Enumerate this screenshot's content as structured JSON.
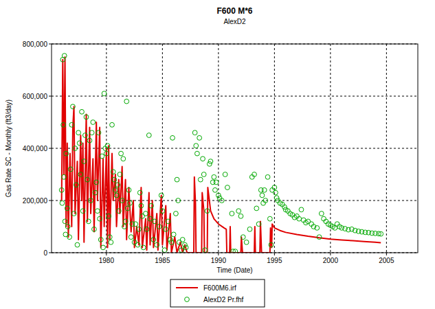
{
  "chart_data": {
    "type": "line",
    "title": "F600 M*6",
    "subtitle": "AlexD2",
    "x_label": "Time (Date)",
    "y_label": "Gas Rate SC - Monthly (ft3/day)",
    "xlim": [
      1975.1,
      2007.8
    ],
    "xticks": [
      1980,
      1985,
      1990,
      1995,
      2000,
      2005
    ],
    "ylim": [
      0,
      800000
    ],
    "yticks": [
      0,
      {
        "value": 200000,
        "label": "200,000"
      },
      {
        "value": 400000,
        "label": "400,000"
      },
      {
        "value": 600000,
        "label": "600,000"
      },
      {
        "value": 800000,
        "label": "800,000"
      }
    ],
    "grid": true,
    "legend": "bottom",
    "series": [
      {
        "name": "F600M6.irf",
        "type": "line",
        "color": "#e00000",
        "line_style": "solid",
        "x": [
          1976.0,
          1976.1,
          1976.2,
          1976.3,
          1976.4,
          1976.5,
          1976.6,
          1976.75,
          1976.9,
          1977.0,
          1977.1,
          1977.2,
          1977.4,
          1977.5,
          1977.7,
          1977.8,
          1977.9,
          1978.0,
          1978.2,
          1978.3,
          1978.5,
          1978.6,
          1978.8,
          1978.9,
          1979.1,
          1979.2,
          1979.4,
          1979.5,
          1979.7,
          1979.8,
          1980.0,
          1980.1,
          1980.2,
          1980.3,
          1980.5,
          1980.6,
          1980.8,
          1980.9,
          1981.1,
          1981.2,
          1981.4,
          1981.5,
          1981.7,
          1981.8,
          1982.0,
          1982.2,
          1982.4,
          1982.5,
          1982.7,
          1982.9,
          1983.1,
          1983.2,
          1983.5,
          1983.6,
          1983.8,
          1983.9,
          1984.1,
          1984.2,
          1984.5,
          1984.6,
          1984.9,
          1985.0,
          1985.3,
          1985.4,
          1985.7,
          1985.8,
          1986.1,
          1986.3,
          1986.6,
          1986.8,
          1987.0,
          1987.2,
          1987.8,
          1987.85,
          1987.95,
          1988.0,
          1988.5,
          1988.55,
          1988.7,
          1988.75,
          1989.0,
          1989.05,
          1989.3,
          1989.6,
          1990.0,
          1990.5,
          1990.7,
          1990.75,
          1991.0,
          1991.05,
          1991.1,
          1992.0,
          1992.05,
          1992.15,
          1993.2,
          1993.25,
          1993.3,
          1993.7,
          1993.75,
          1993.85,
          1994.6,
          1994.65,
          1994.75,
          1994.8,
          1995.0,
          1995.5,
          1996,
          1997,
          1998,
          1999,
          2000,
          2001,
          2002,
          2003,
          2004,
          2004.5
        ],
        "values": [
          200000,
          740000,
          300000,
          750000,
          100000,
          420000,
          60000,
          380000,
          100000,
          480000,
          560000,
          150000,
          350000,
          50000,
          450000,
          200000,
          420000,
          40000,
          530000,
          120000,
          480000,
          150000,
          360000,
          80000,
          500000,
          200000,
          480000,
          20000,
          360000,
          100000,
          400000,
          20000,
          410000,
          50000,
          380000,
          200000,
          300000,
          100000,
          280000,
          150000,
          330000,
          100000,
          280000,
          50000,
          250000,
          80000,
          200000,
          20000,
          100000,
          30000,
          250000,
          20000,
          130000,
          10000,
          230000,
          30000,
          200000,
          20000,
          150000,
          10000,
          220000,
          30000,
          180000,
          10000,
          150000,
          0,
          60000,
          0,
          40000,
          0,
          30000,
          0,
          0,
          290000,
          190000,
          0,
          0,
          230000,
          160000,
          0,
          0,
          250000,
          160000,
          130000,
          110000,
          95000,
          90000,
          0,
          0,
          100000,
          0,
          0,
          60000,
          0,
          0,
          100000,
          0,
          0,
          120000,
          0,
          0,
          95000,
          20000,
          110000,
          95000,
          85000,
          78000,
          70000,
          63000,
          57000,
          52000,
          49000,
          46000,
          43000,
          40000,
          38000
        ]
      },
      {
        "name": "AlexD2 Pr.fhf",
        "type": "scatter",
        "color": "#00a800",
        "marker": "circle",
        "x": [
          1976.0,
          1976.05,
          1976.1,
          1976.15,
          1976.2,
          1976.25,
          1976.3,
          1976.35,
          1976.4,
          1976.5,
          1976.55,
          1976.7,
          1976.8,
          1976.9,
          1977.0,
          1977.1,
          1977.2,
          1977.3,
          1977.4,
          1977.5,
          1977.6,
          1977.7,
          1977.8,
          1977.9,
          1978.0,
          1978.1,
          1978.2,
          1978.3,
          1978.4,
          1978.5,
          1978.6,
          1978.7,
          1978.8,
          1978.9,
          1979.0,
          1979.1,
          1979.2,
          1979.3,
          1979.4,
          1979.5,
          1979.6,
          1979.7,
          1979.8,
          1979.9,
          1980.0,
          1980.1,
          1980.2,
          1980.3,
          1980.4,
          1980.5,
          1980.6,
          1980.7,
          1980.8,
          1980.9,
          1981.0,
          1981.1,
          1981.2,
          1981.3,
          1981.4,
          1981.5,
          1981.6,
          1981.7,
          1981.8,
          1981.9,
          1982.0,
          1982.1,
          1982.2,
          1982.3,
          1982.5,
          1982.6,
          1982.8,
          1982.9,
          1983.0,
          1983.1,
          1983.2,
          1983.3,
          1983.5,
          1983.6,
          1983.8,
          1983.9,
          1984.0,
          1984.2,
          1984.3,
          1984.5,
          1984.7,
          1984.9,
          1985.0,
          1985.2,
          1985.3,
          1985.5,
          1985.7,
          1985.8,
          1985.9,
          1986.0,
          1986.2,
          1986.3,
          1986.4,
          1986.5,
          1986.7,
          1986.8,
          1987.0,
          1987.1,
          1987.9,
          1988.0,
          1988.1,
          1988.3,
          1988.4,
          1988.6,
          1988.7,
          1988.8,
          1989.0,
          1989.2,
          1989.3,
          1989.5,
          1989.6,
          1989.7,
          1989.8,
          1990.0,
          1990.1,
          1990.3,
          1990.6,
          1990.8,
          1991.2,
          1991.3,
          1991.5,
          1991.8,
          1992.0,
          1992.2,
          1992.5,
          1992.8,
          1993.0,
          1993.2,
          1993.4,
          1993.6,
          1993.8,
          1993.9,
          1994.0,
          1994.1,
          1994.2,
          1994.4,
          1994.6,
          1994.7,
          1994.8,
          1995.0,
          1995.1,
          1995.2,
          1995.3,
          1995.5,
          1995.7,
          1995.9,
          1996.0,
          1996.2,
          1996.4,
          1996.6,
          1996.8,
          1997.0,
          1997.2,
          1997.4,
          1997.6,
          1997.8,
          1998.0,
          1998.3,
          1998.5,
          1998.8,
          1999.0,
          1999.2,
          1999.4,
          1999.6,
          1999.8,
          2000.0,
          2000.2,
          2000.4,
          2000.6,
          2000.8,
          2001.0,
          2001.3,
          2001.6,
          2001.9,
          2002.2,
          2002.5,
          2002.8,
          2003.1,
          2003.4,
          2003.7,
          2004.0,
          2004.3,
          2004.5
        ],
        "values": [
          240000,
          190000,
          740000,
          490000,
          290000,
          755000,
          120000,
          70000,
          380000,
          170000,
          100000,
          60000,
          320000,
          490000,
          560000,
          150000,
          400000,
          260000,
          30000,
          460000,
          420000,
          300000,
          540000,
          160000,
          350000,
          450000,
          520000,
          280000,
          120000,
          430000,
          200000,
          460000,
          500000,
          90000,
          230000,
          270000,
          160000,
          460000,
          130000,
          50000,
          370000,
          20000,
          610000,
          400000,
          380000,
          410000,
          140000,
          60000,
          40000,
          490000,
          310000,
          280000,
          240000,
          220000,
          260000,
          160000,
          300000,
          380000,
          200000,
          360000,
          100000,
          120000,
          580000,
          170000,
          240000,
          190000,
          60000,
          110000,
          40000,
          110000,
          30000,
          90000,
          230000,
          180000,
          140000,
          20000,
          150000,
          90000,
          450000,
          130000,
          180000,
          50000,
          120000,
          30000,
          100000,
          220000,
          160000,
          10000,
          90000,
          120000,
          50000,
          40000,
          440000,
          70000,
          150000,
          280000,
          200000,
          40000,
          10000,
          50000,
          30000,
          20000,
          460000,
          410000,
          380000,
          440000,
          280000,
          360000,
          300000,
          10000,
          160000,
          340000,
          350000,
          270000,
          290000,
          240000,
          270000,
          220000,
          210000,
          200000,
          300000,
          250000,
          150000,
          5000,
          5000,
          160000,
          140000,
          60000,
          40000,
          90000,
          290000,
          300000,
          170000,
          110000,
          240000,
          220000,
          190000,
          240000,
          200000,
          290000,
          130000,
          30000,
          240000,
          250000,
          230000,
          210000,
          200000,
          190000,
          185000,
          175000,
          165000,
          160000,
          150000,
          145000,
          135000,
          140000,
          130000,
          165000,
          125000,
          115000,
          120000,
          110000,
          100000,
          95000,
          60000,
          150000,
          130000,
          120000,
          110000,
          105000,
          100000,
          95000,
          110000,
          100000,
          95000,
          92000,
          88000,
          90000,
          85000,
          82000,
          80000,
          78000,
          77000,
          75000,
          74000,
          73000,
          72000
        ]
      }
    ]
  }
}
